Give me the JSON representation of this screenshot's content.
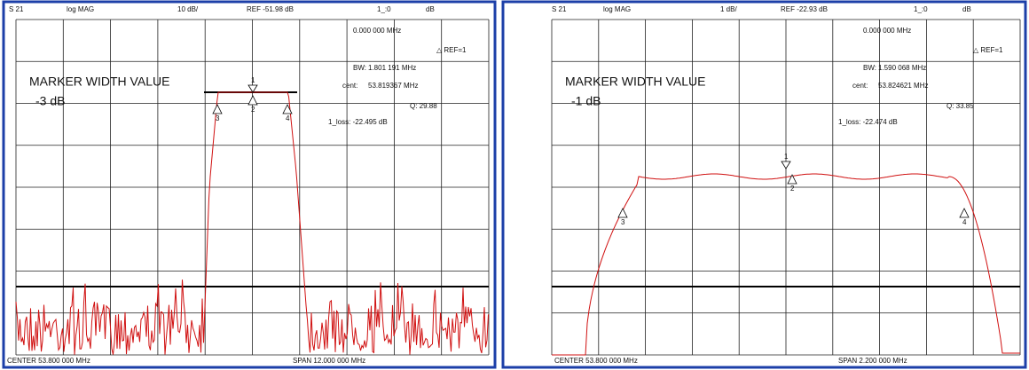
{
  "panels": [
    {
      "header": {
        "param": "S 21",
        "format": "log MAG",
        "scale": "10 dB/",
        "ref": "REF -51.98 dB",
        "marker": "1_:0",
        "unit": "dB"
      },
      "readout": {
        "freq": "0.000 000 MHz",
        "ref": "△ REF=1",
        "bw_label": "BW:",
        "bw": "1.801 191 MHz",
        "cent_label": "cent:",
        "cent": "53.819367 MHz",
        "q": "Q: 29.88",
        "loss": "1_loss: -22.495 dB"
      },
      "marker_width": {
        "title": "MARKER WIDTH VALUE",
        "value": "-3 dB"
      },
      "markers": [
        "1",
        "2",
        "3",
        "4"
      ],
      "footer": {
        "center": "CENTER  53.800 000 MHz",
        "span": "SPAN  12.000 000 MHz"
      }
    },
    {
      "header": {
        "param": "S 21",
        "format": "log MAG",
        "scale": "1 dB/",
        "ref": "REF -22.93 dB",
        "marker": "1_:0",
        "unit": "dB"
      },
      "readout": {
        "freq": "0.000 000 MHz",
        "ref": "△ REF=1",
        "bw_label": "BW:",
        "bw": "1.590 068 MHz",
        "cent_label": "cent:",
        "cent": "53.824621 MHz",
        "q": "Q: 33.85",
        "loss": "1_loss: -22.474 dB"
      },
      "marker_width": {
        "title": "MARKER WIDTH VALUE",
        "value": "-1 dB"
      },
      "markers": [
        "1",
        "2",
        "3",
        "4"
      ],
      "footer": {
        "center": "CENTER  53.800 000 MHz",
        "span": "SPAN  2.200 000 MHz"
      }
    }
  ]
}
